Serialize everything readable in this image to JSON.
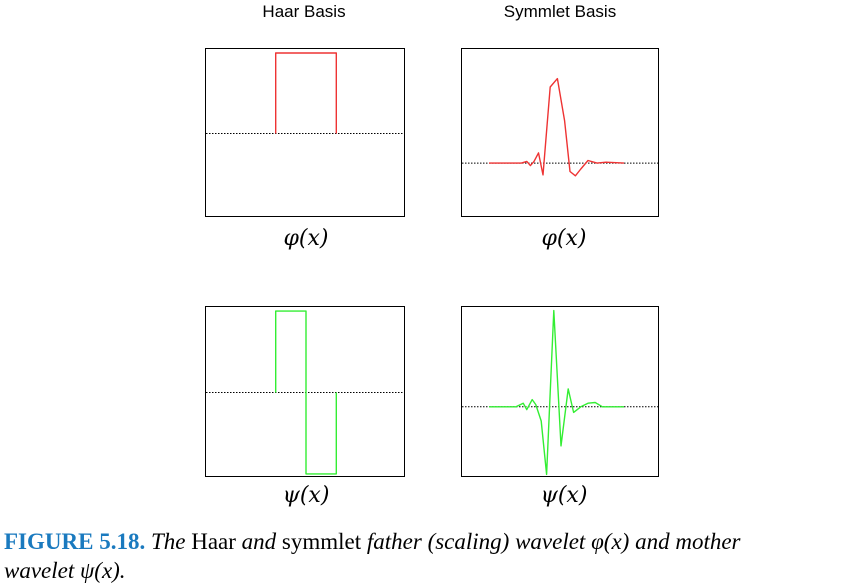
{
  "columns": {
    "left_title": "Haar Basis",
    "right_title": "Symmlet Basis"
  },
  "labels": {
    "phi": "φ(x)",
    "psi": "ψ(x)"
  },
  "colors": {
    "father": "#ee3333",
    "mother": "#33ee33",
    "baseline": "#000000",
    "figure_number": "#1a7abf"
  },
  "caption": {
    "figure_number": "FIGURE 5.18.",
    "part1": "The",
    "part2": "Haar",
    "part3": "and",
    "part4": "symmlet",
    "part5": "father (scaling) wavelet",
    "part6": "φ(x)",
    "part7": "and mother",
    "part8": "wavelet",
    "part9": "ψ(x)."
  },
  "chart_data": [
    {
      "type": "line",
      "name_panel": "haar-phi",
      "title": "",
      "x": [
        0,
        0,
        1,
        1
      ],
      "y": [
        0,
        1,
        1,
        0
      ],
      "xlim": [
        -1.15,
        2.15
      ],
      "ylim": [
        -1.05,
        1.05
      ],
      "baseline": 0,
      "color": "#ee3333"
    },
    {
      "type": "line",
      "name_panel": "symmlet-phi",
      "title": "",
      "x": [
        -3,
        -1.2,
        -0.9,
        -0.7,
        -0.5,
        -0.25,
        0.0,
        0.4,
        0.8,
        1.2,
        1.5,
        1.8,
        2.1,
        2.5,
        3.0,
        3.5,
        4.5
      ],
      "y": [
        0,
        0,
        0.02,
        -0.03,
        0.02,
        0.12,
        -0.14,
        0.9,
        1.0,
        0.5,
        -0.1,
        -0.15,
        -0.07,
        0.03,
        0.0,
        0.01,
        0
      ],
      "xlim": [
        -4.5,
        6.5
      ],
      "ylim": [
        -0.65,
        1.35
      ],
      "baseline": 0,
      "color": "#ee3333"
    },
    {
      "type": "line",
      "name_panel": "haar-psi",
      "title": "",
      "x": [
        0,
        0,
        0.5,
        0.5,
        1,
        1
      ],
      "y": [
        0,
        1,
        1,
        -1,
        -1,
        0
      ],
      "xlim": [
        -1.15,
        2.15
      ],
      "ylim": [
        -1.05,
        1.05
      ],
      "baseline": 0,
      "color": "#33ee33"
    },
    {
      "type": "line",
      "name_panel": "symmlet-psi",
      "title": "",
      "x": [
        -3,
        -1.5,
        -1.1,
        -0.9,
        -0.6,
        -0.4,
        -0.1,
        0.2,
        0.6,
        1.0,
        1.4,
        1.7,
        2.1,
        2.5,
        2.9,
        3.3,
        3.8,
        4.5
      ],
      "y": [
        0,
        0,
        0.05,
        -0.04,
        0.1,
        0.03,
        -0.2,
        -0.95,
        1.35,
        -0.55,
        0.25,
        -0.08,
        0.0,
        0.05,
        0.06,
        0.0,
        0.0,
        0
      ],
      "xlim": [
        -4.5,
        6.5
      ],
      "ylim": [
        -1.0,
        1.4
      ],
      "baseline": 0,
      "color": "#33ee33"
    }
  ]
}
